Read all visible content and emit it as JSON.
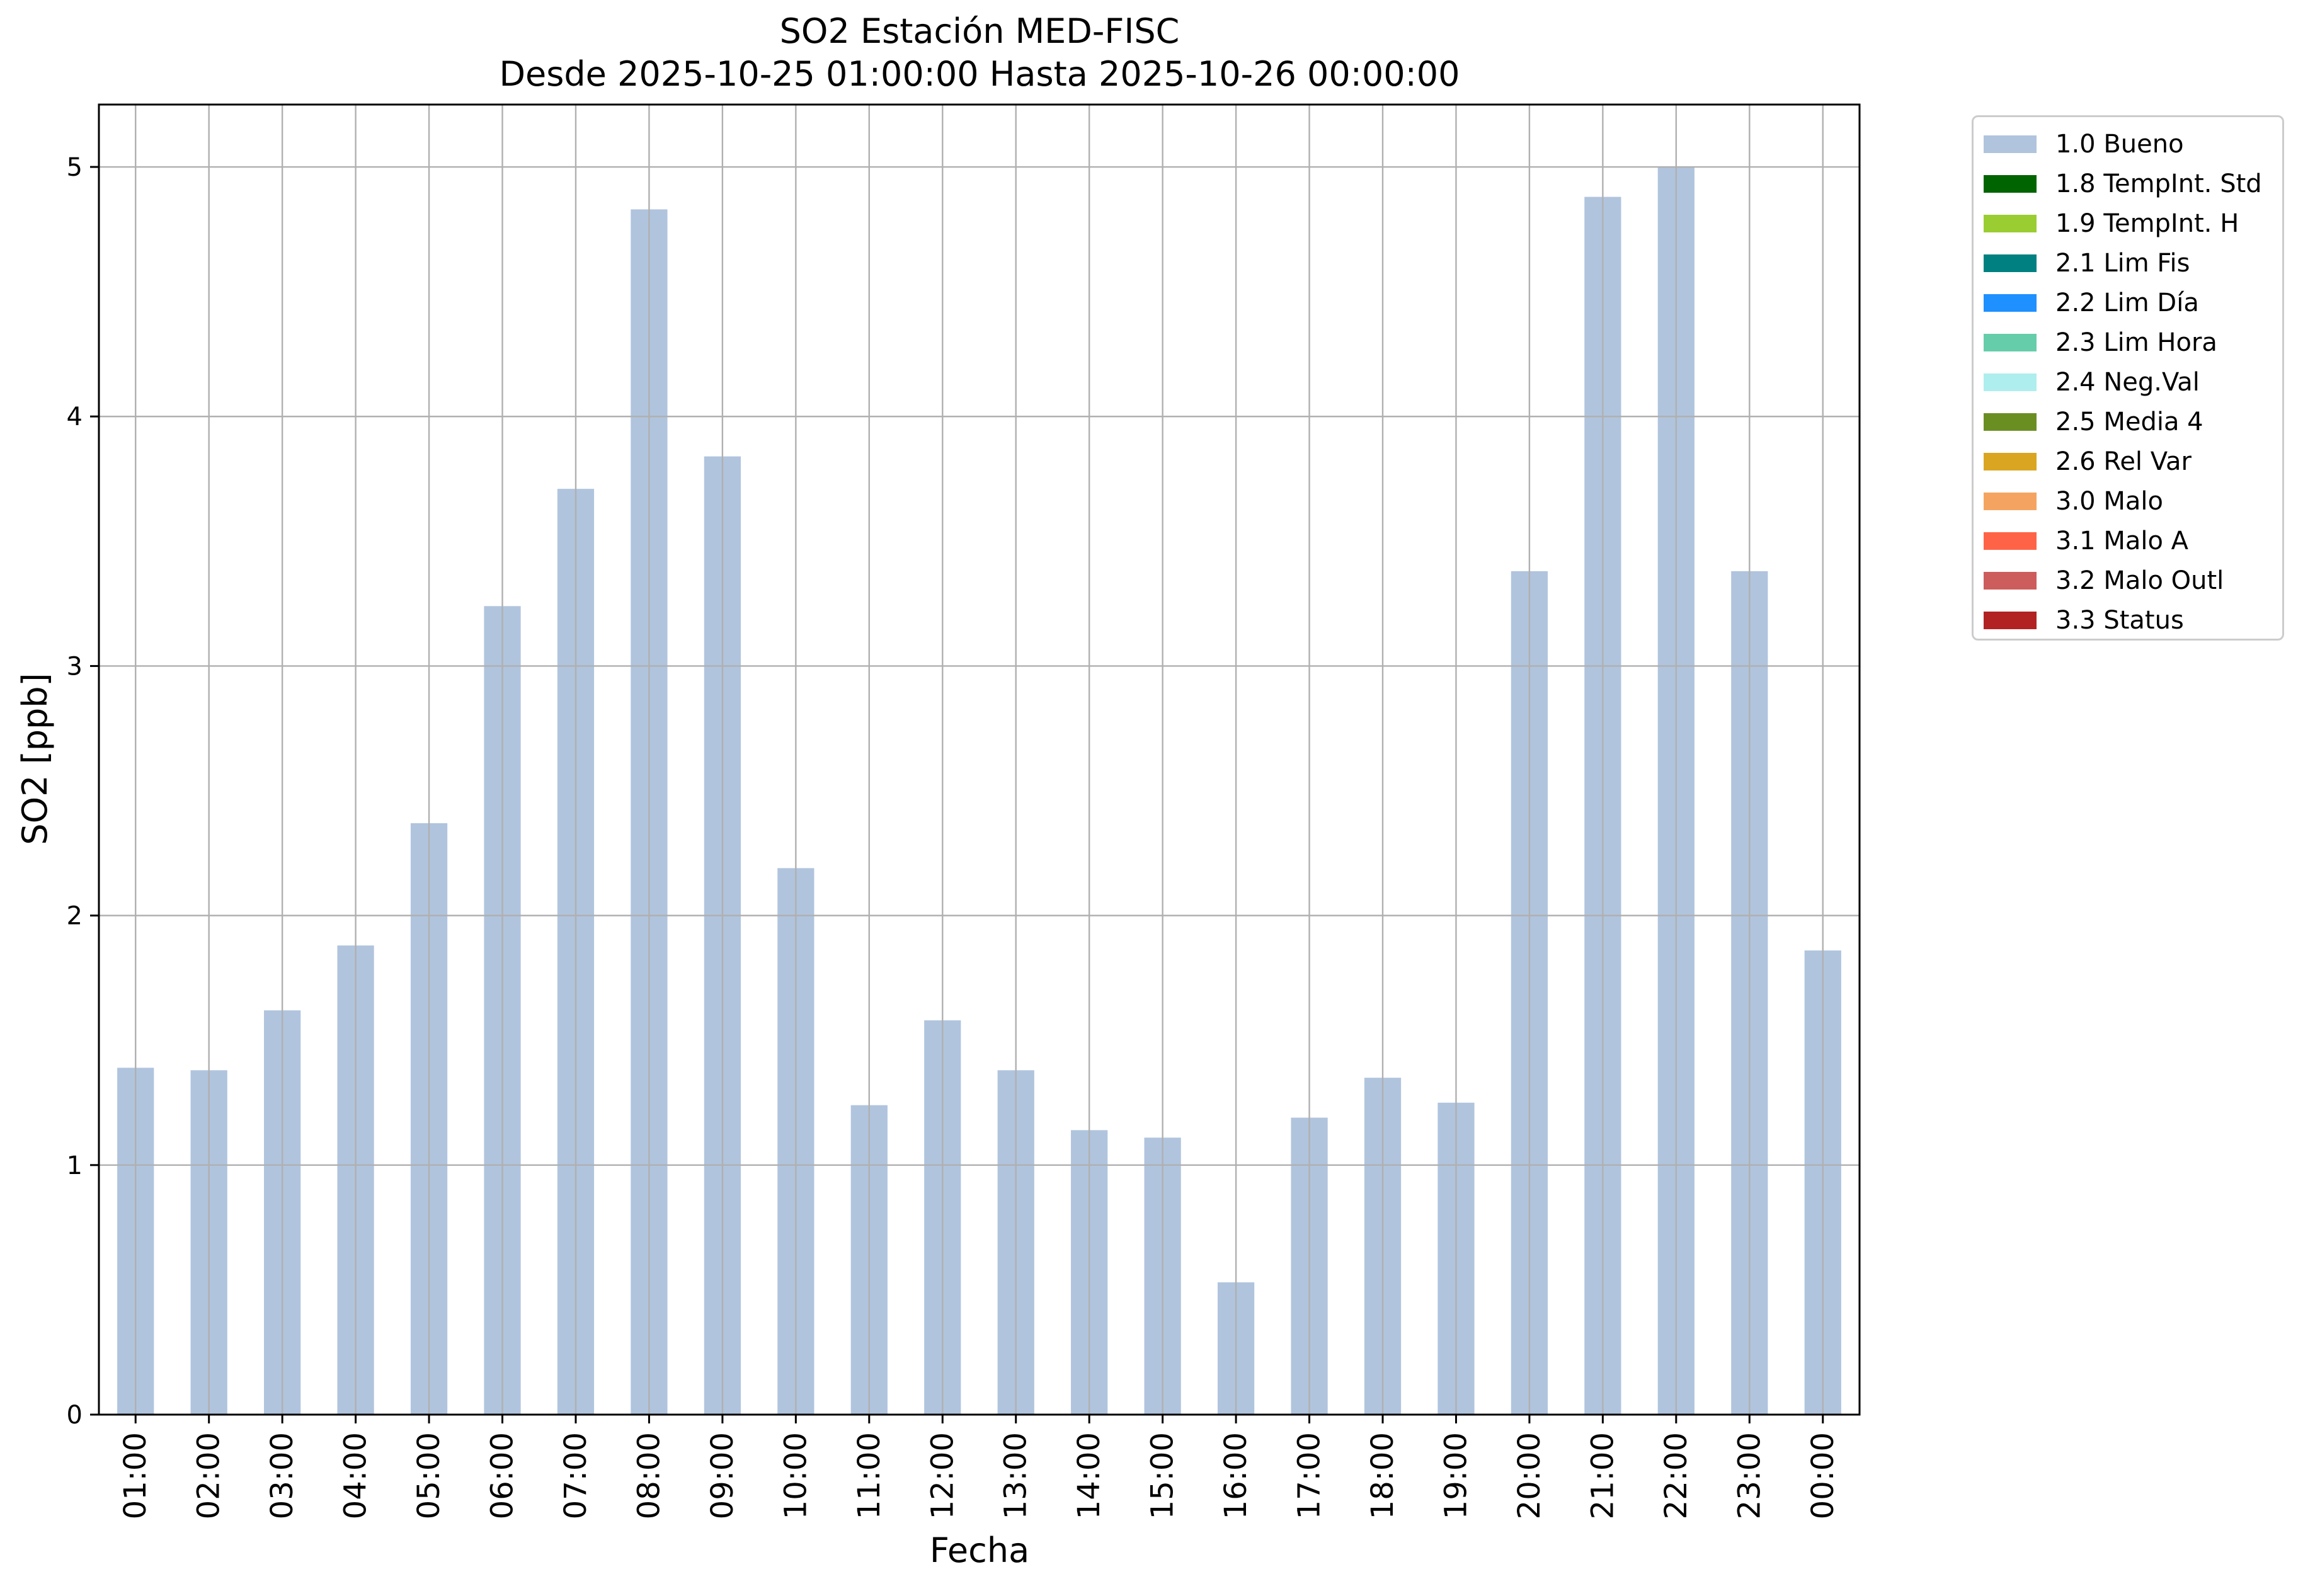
{
  "title_line1": "SO2 Estación MED-FISC",
  "title_line2": "Desde 2025-10-25 01:00:00 Hasta 2025-10-26 00:00:00",
  "chart_data": {
    "type": "bar",
    "title": "SO2 Estación MED-FISC\nDesde 2025-10-25 01:00:00 Hasta 2025-10-26 00:00:00",
    "xlabel": "Fecha",
    "ylabel": "SO2 [ppb]",
    "ylim": [
      0,
      5.25
    ],
    "yticks": [
      "0",
      "1",
      "2",
      "3",
      "4",
      "5"
    ],
    "grid": true,
    "legend_position": "outside-top-right",
    "categories": [
      "01:00",
      "02:00",
      "03:00",
      "04:00",
      "05:00",
      "06:00",
      "07:00",
      "08:00",
      "09:00",
      "10:00",
      "11:00",
      "12:00",
      "13:00",
      "14:00",
      "15:00",
      "16:00",
      "17:00",
      "18:00",
      "19:00",
      "20:00",
      "21:00",
      "22:00",
      "23:00",
      "00:00"
    ],
    "series": [
      {
        "name": "1.0 Bueno",
        "color": "#b0c4de",
        "values": [
          1.39,
          1.38,
          1.62,
          1.88,
          2.37,
          3.24,
          3.71,
          4.83,
          3.84,
          2.19,
          1.24,
          1.58,
          1.38,
          1.14,
          1.11,
          0.53,
          1.19,
          1.35,
          1.25,
          3.38,
          4.88,
          5.0,
          3.38,
          1.86
        ]
      }
    ],
    "legend": [
      {
        "label": "1.0 Bueno",
        "color": "#b0c4de"
      },
      {
        "label": "1.8 TempInt. Std",
        "color": "#006400"
      },
      {
        "label": "1.9 TempInt. H",
        "color": "#9acd32"
      },
      {
        "label": "2.1 Lim Fis",
        "color": "#008080"
      },
      {
        "label": "2.2 Lim Día",
        "color": "#1e90ff"
      },
      {
        "label": "2.3 Lim Hora",
        "color": "#66cdaa"
      },
      {
        "label": "2.4 Neg.Val",
        "color": "#afeeee"
      },
      {
        "label": "2.5 Media 4",
        "color": "#6b8e23"
      },
      {
        "label": "2.6 Rel Var",
        "color": "#daa520"
      },
      {
        "label": "3.0 Malo",
        "color": "#f4a460"
      },
      {
        "label": "3.1 Malo A",
        "color": "#ff6347"
      },
      {
        "label": "3.2 Malo Outl",
        "color": "#cd5c5c"
      },
      {
        "label": "3.3 Status",
        "color": "#b22222"
      }
    ]
  }
}
